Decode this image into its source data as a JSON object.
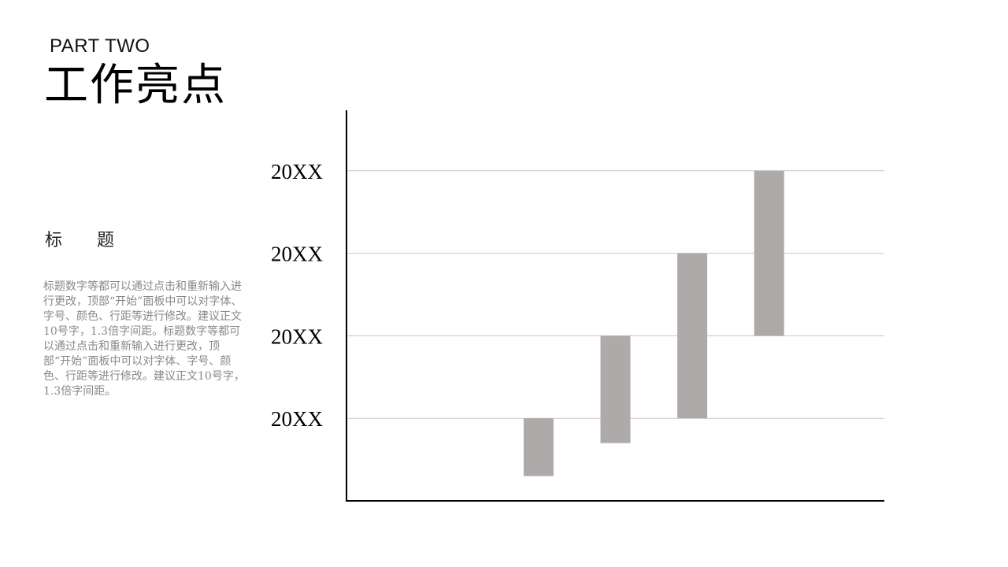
{
  "header": {
    "part_label": "PART TWO",
    "title": "工作亮点"
  },
  "sidebar": {
    "heading": "标　　题",
    "body": "标题数字等都可以通过点击和重新输入进行更改，顶部“开始”面板中可以对字体、字号、颜色、行距等进行修改。建议正文10号字，1.3倍字间距。标题数字等都可以通过点击和重新输入进行更改，顶部“开始”面板中可以对字体、字号、颜色、行距等进行修改。建议正文10号字，1.3倍字间距。"
  },
  "colors": {
    "bar": "#aeaaa9",
    "grid": "#c8c8c8",
    "axis": "#000000",
    "tick_text": "#000000",
    "body_text": "#888888"
  },
  "chart_data": {
    "type": "bar",
    "subtype": "floating",
    "title": "",
    "xlabel": "",
    "ylabel": "",
    "ylim": [
      0,
      4
    ],
    "y_ticks": [
      1,
      2,
      3,
      4
    ],
    "y_tick_labels": [
      "20XX",
      "20XX",
      "20XX",
      "20XX"
    ],
    "categories": [
      "",
      "",
      "",
      "",
      "",
      "",
      ""
    ],
    "series": [
      {
        "ranges": [
          null,
          null,
          [
            0.3,
            1.0
          ],
          [
            0.7,
            2.0
          ],
          [
            1.0,
            3.0
          ],
          [
            2.0,
            4.0
          ],
          null
        ]
      }
    ],
    "grid": true,
    "legend": "none"
  }
}
